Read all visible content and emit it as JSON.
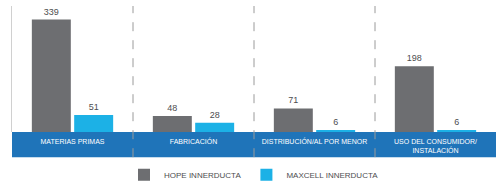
{
  "chart_data": {
    "type": "bar",
    "categories": [
      "MATERIAS PRIMAS",
      "FABRICACIÓN",
      "DISTRIBUCIÓN/AL POR MENOR",
      "USO DEL CONSUMIDOR/ INSTALACIÓN"
    ],
    "series": [
      {
        "name": "HOPE INNERDUCTA",
        "color": "#6d6e71",
        "values": [
          339,
          48,
          71,
          198
        ]
      },
      {
        "name": "MAXCELL INNERDUCTA",
        "color": "#1cb1e6",
        "values": [
          51,
          28,
          6,
          6
        ]
      }
    ],
    "ylim": [
      0,
      380
    ],
    "yticks": [],
    "grid": false,
    "legend": "bottom",
    "data_labels": true,
    "tick_labels": "x"
  }
}
